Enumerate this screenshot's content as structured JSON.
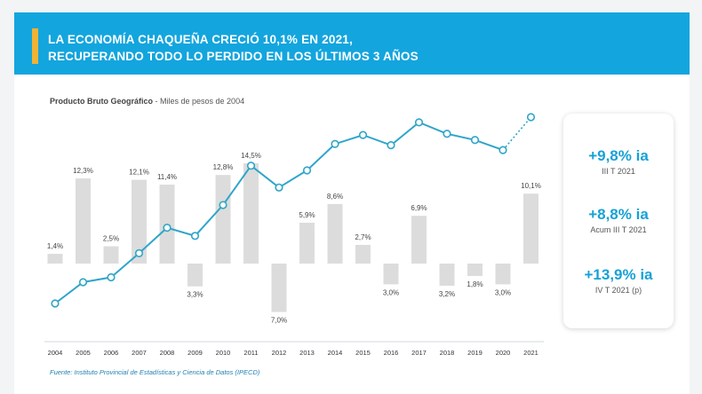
{
  "header": {
    "title_line1": "LA ECONOMÍA CHAQUEÑA CRECIÓ 10,1% EN 2021,",
    "title_line2": "RECUPERANDO TODO LO PERDIDO EN LOS ÚLTIMOS 3 AÑOS"
  },
  "chart_title": {
    "bold": "Producto Bruto Geográfico",
    "rest": " - Miles de pesos de 2004"
  },
  "source": "Fuente: Instituto Provincial de Estadísticas y Ciencia de Datos (IPECD)",
  "stats": [
    {
      "value": "+9,8% ia",
      "label": "III T 2021"
    },
    {
      "value": "+8,8% ia",
      "label": "Acum III T 2021"
    },
    {
      "value": "+13,9% ia",
      "label": "IV T 2021 (p)"
    }
  ],
  "colors": {
    "bar": "#dcdcdc",
    "line": "#2fa5c9",
    "banner": "#13a5de",
    "accent": "#f2b233",
    "stat_text": "#17a1d6"
  },
  "chart_data": {
    "type": "bar+line",
    "categories": [
      "2004",
      "2005",
      "2006",
      "2007",
      "2008",
      "2009",
      "2010",
      "2011",
      "2012",
      "2013",
      "2014",
      "2015",
      "2016",
      "2017",
      "2018",
      "2019",
      "2020",
      "2021"
    ],
    "growth_percent": [
      1.4,
      12.3,
      2.5,
      12.1,
      11.4,
      -3.3,
      12.8,
      14.5,
      -7.0,
      5.9,
      8.6,
      2.7,
      -3.0,
      6.9,
      -3.2,
      -1.8,
      -3.0,
      10.1
    ],
    "growth_labels": [
      "1,4%",
      "12,3%",
      "2,5%",
      "12,1%",
      "11,4%",
      "3,3%",
      "12,8%",
      "14,5%",
      "7,0%",
      "5,9%",
      "8,6%",
      "2,7%",
      "3,0%",
      "6,9%",
      "3,2%",
      "1,8%",
      "3,0%",
      "10,1%"
    ],
    "pbg_index": [
      100,
      112.3,
      115.1,
      129.0,
      143.7,
      139.0,
      156.8,
      179.5,
      166.9,
      176.8,
      192.0,
      197.2,
      191.3,
      204.5,
      197.9,
      194.3,
      188.5,
      207.5
    ],
    "line_projected_from_index": 16
  }
}
